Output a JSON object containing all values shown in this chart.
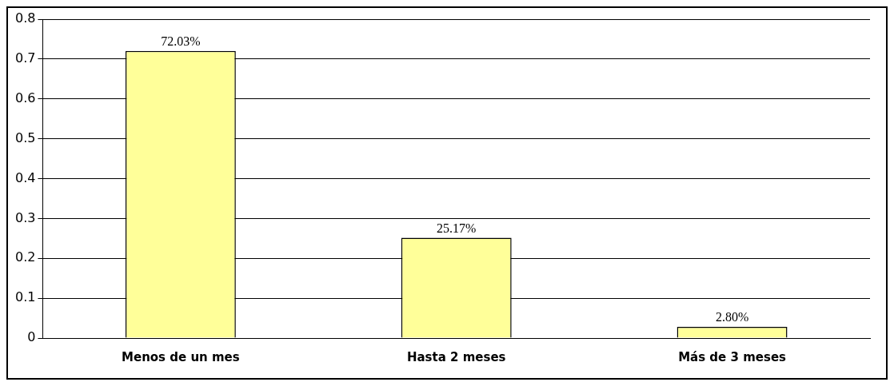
{
  "chart_data": {
    "type": "bar",
    "categories": [
      "Menos de un mes",
      "Hasta 2 meses",
      "Más de 3 meses"
    ],
    "values": [
      0.7203,
      0.2517,
      0.028
    ],
    "value_labels": [
      "72.03%",
      "25.17%",
      "2.80%"
    ],
    "color": "#ffff99",
    "ylim": [
      0,
      0.8
    ],
    "yticks": [
      0,
      0.1,
      0.2,
      0.3,
      0.4,
      0.5,
      0.6,
      0.7,
      0.8
    ],
    "grid": "y",
    "legend": false
  }
}
